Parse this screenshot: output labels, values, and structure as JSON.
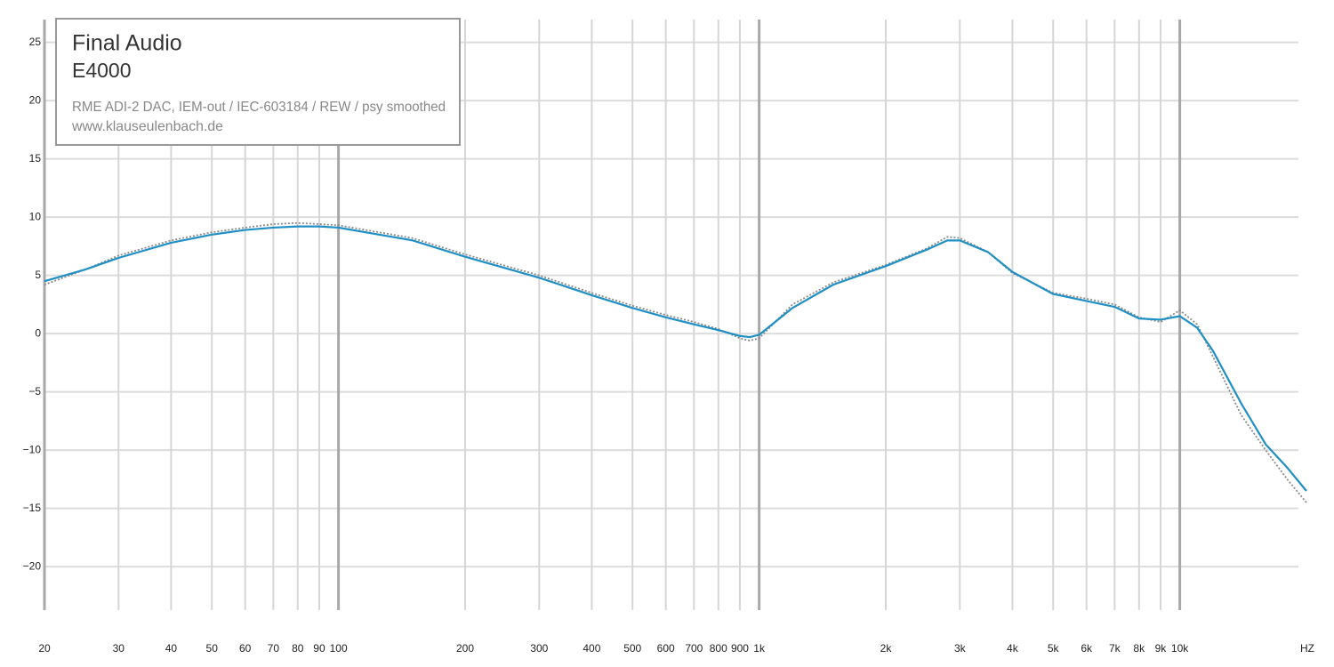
{
  "chart_data": {
    "type": "line",
    "title": "Final Audio",
    "subtitle": "E4000",
    "annotations": [
      "RME ADI-2 DAC, IEM-out / IEC-603184 / REW / psy smoothed",
      "www.klauseulenbach.de"
    ],
    "x_label": "HZ",
    "log_x": true,
    "grid": true,
    "x": [
      20,
      25,
      30,
      40,
      50,
      60,
      70,
      80,
      90,
      100,
      150,
      200,
      300,
      400,
      500,
      600,
      700,
      800,
      900,
      950,
      1000,
      1200,
      1500,
      2000,
      2500,
      2800,
      3000,
      3500,
      4000,
      5000,
      6000,
      7000,
      8000,
      9000,
      10000,
      11000,
      12000,
      14000,
      16000,
      18000,
      20000
    ],
    "series": [
      {
        "color": "#8a8a8a",
        "style": "dotted",
        "values": [
          4.2,
          5.5,
          6.7,
          8.0,
          8.7,
          9.1,
          9.4,
          9.5,
          9.4,
          9.3,
          8.2,
          6.8,
          5.0,
          3.5,
          2.4,
          1.6,
          1.0,
          0.4,
          -0.4,
          -0.6,
          -0.4,
          2.5,
          4.4,
          5.9,
          7.3,
          8.3,
          8.2,
          7.0,
          5.2,
          3.5,
          3.0,
          2.5,
          1.4,
          1.0,
          2.0,
          0.8,
          -2.0,
          -7.0,
          -10.0,
          -12.5,
          -14.5
        ]
      },
      {
        "color": "#1f8fc4",
        "style": "solid",
        "values": [
          4.5,
          5.5,
          6.5,
          7.8,
          8.5,
          8.9,
          9.1,
          9.2,
          9.2,
          9.1,
          8.0,
          6.6,
          4.8,
          3.3,
          2.2,
          1.4,
          0.8,
          0.3,
          -0.2,
          -0.3,
          -0.1,
          2.2,
          4.2,
          5.8,
          7.2,
          8.0,
          8.0,
          7.0,
          5.3,
          3.4,
          2.8,
          2.3,
          1.3,
          1.2,
          1.5,
          0.5,
          -1.5,
          -6.0,
          -9.5,
          -11.5,
          -13.5
        ]
      }
    ],
    "xlim": [
      20,
      20000
    ],
    "xticks": [
      20,
      30,
      40,
      50,
      60,
      70,
      80,
      90,
      100,
      200,
      300,
      400,
      500,
      600,
      700,
      800,
      900,
      {
        "value": 1000,
        "label": "1k"
      },
      {
        "value": 2000,
        "label": "2k"
      },
      {
        "value": 3000,
        "label": "3k"
      },
      {
        "value": 4000,
        "label": "4k"
      },
      {
        "value": 5000,
        "label": "5k"
      },
      {
        "value": 6000,
        "label": "6k"
      },
      {
        "value": 7000,
        "label": "7k"
      },
      {
        "value": 8000,
        "label": "8k"
      },
      {
        "value": 9000,
        "label": "9k"
      },
      {
        "value": 10000,
        "label": "10k"
      }
    ],
    "ylim": [
      -23.5,
      26.5
    ],
    "yticks": [
      25,
      20,
      15,
      10,
      5,
      0,
      {
        "value": -5,
        "label": "−5"
      },
      {
        "value": -10,
        "label": "−10"
      },
      {
        "value": -15,
        "label": "−15"
      },
      {
        "value": -20,
        "label": "−20"
      }
    ]
  }
}
